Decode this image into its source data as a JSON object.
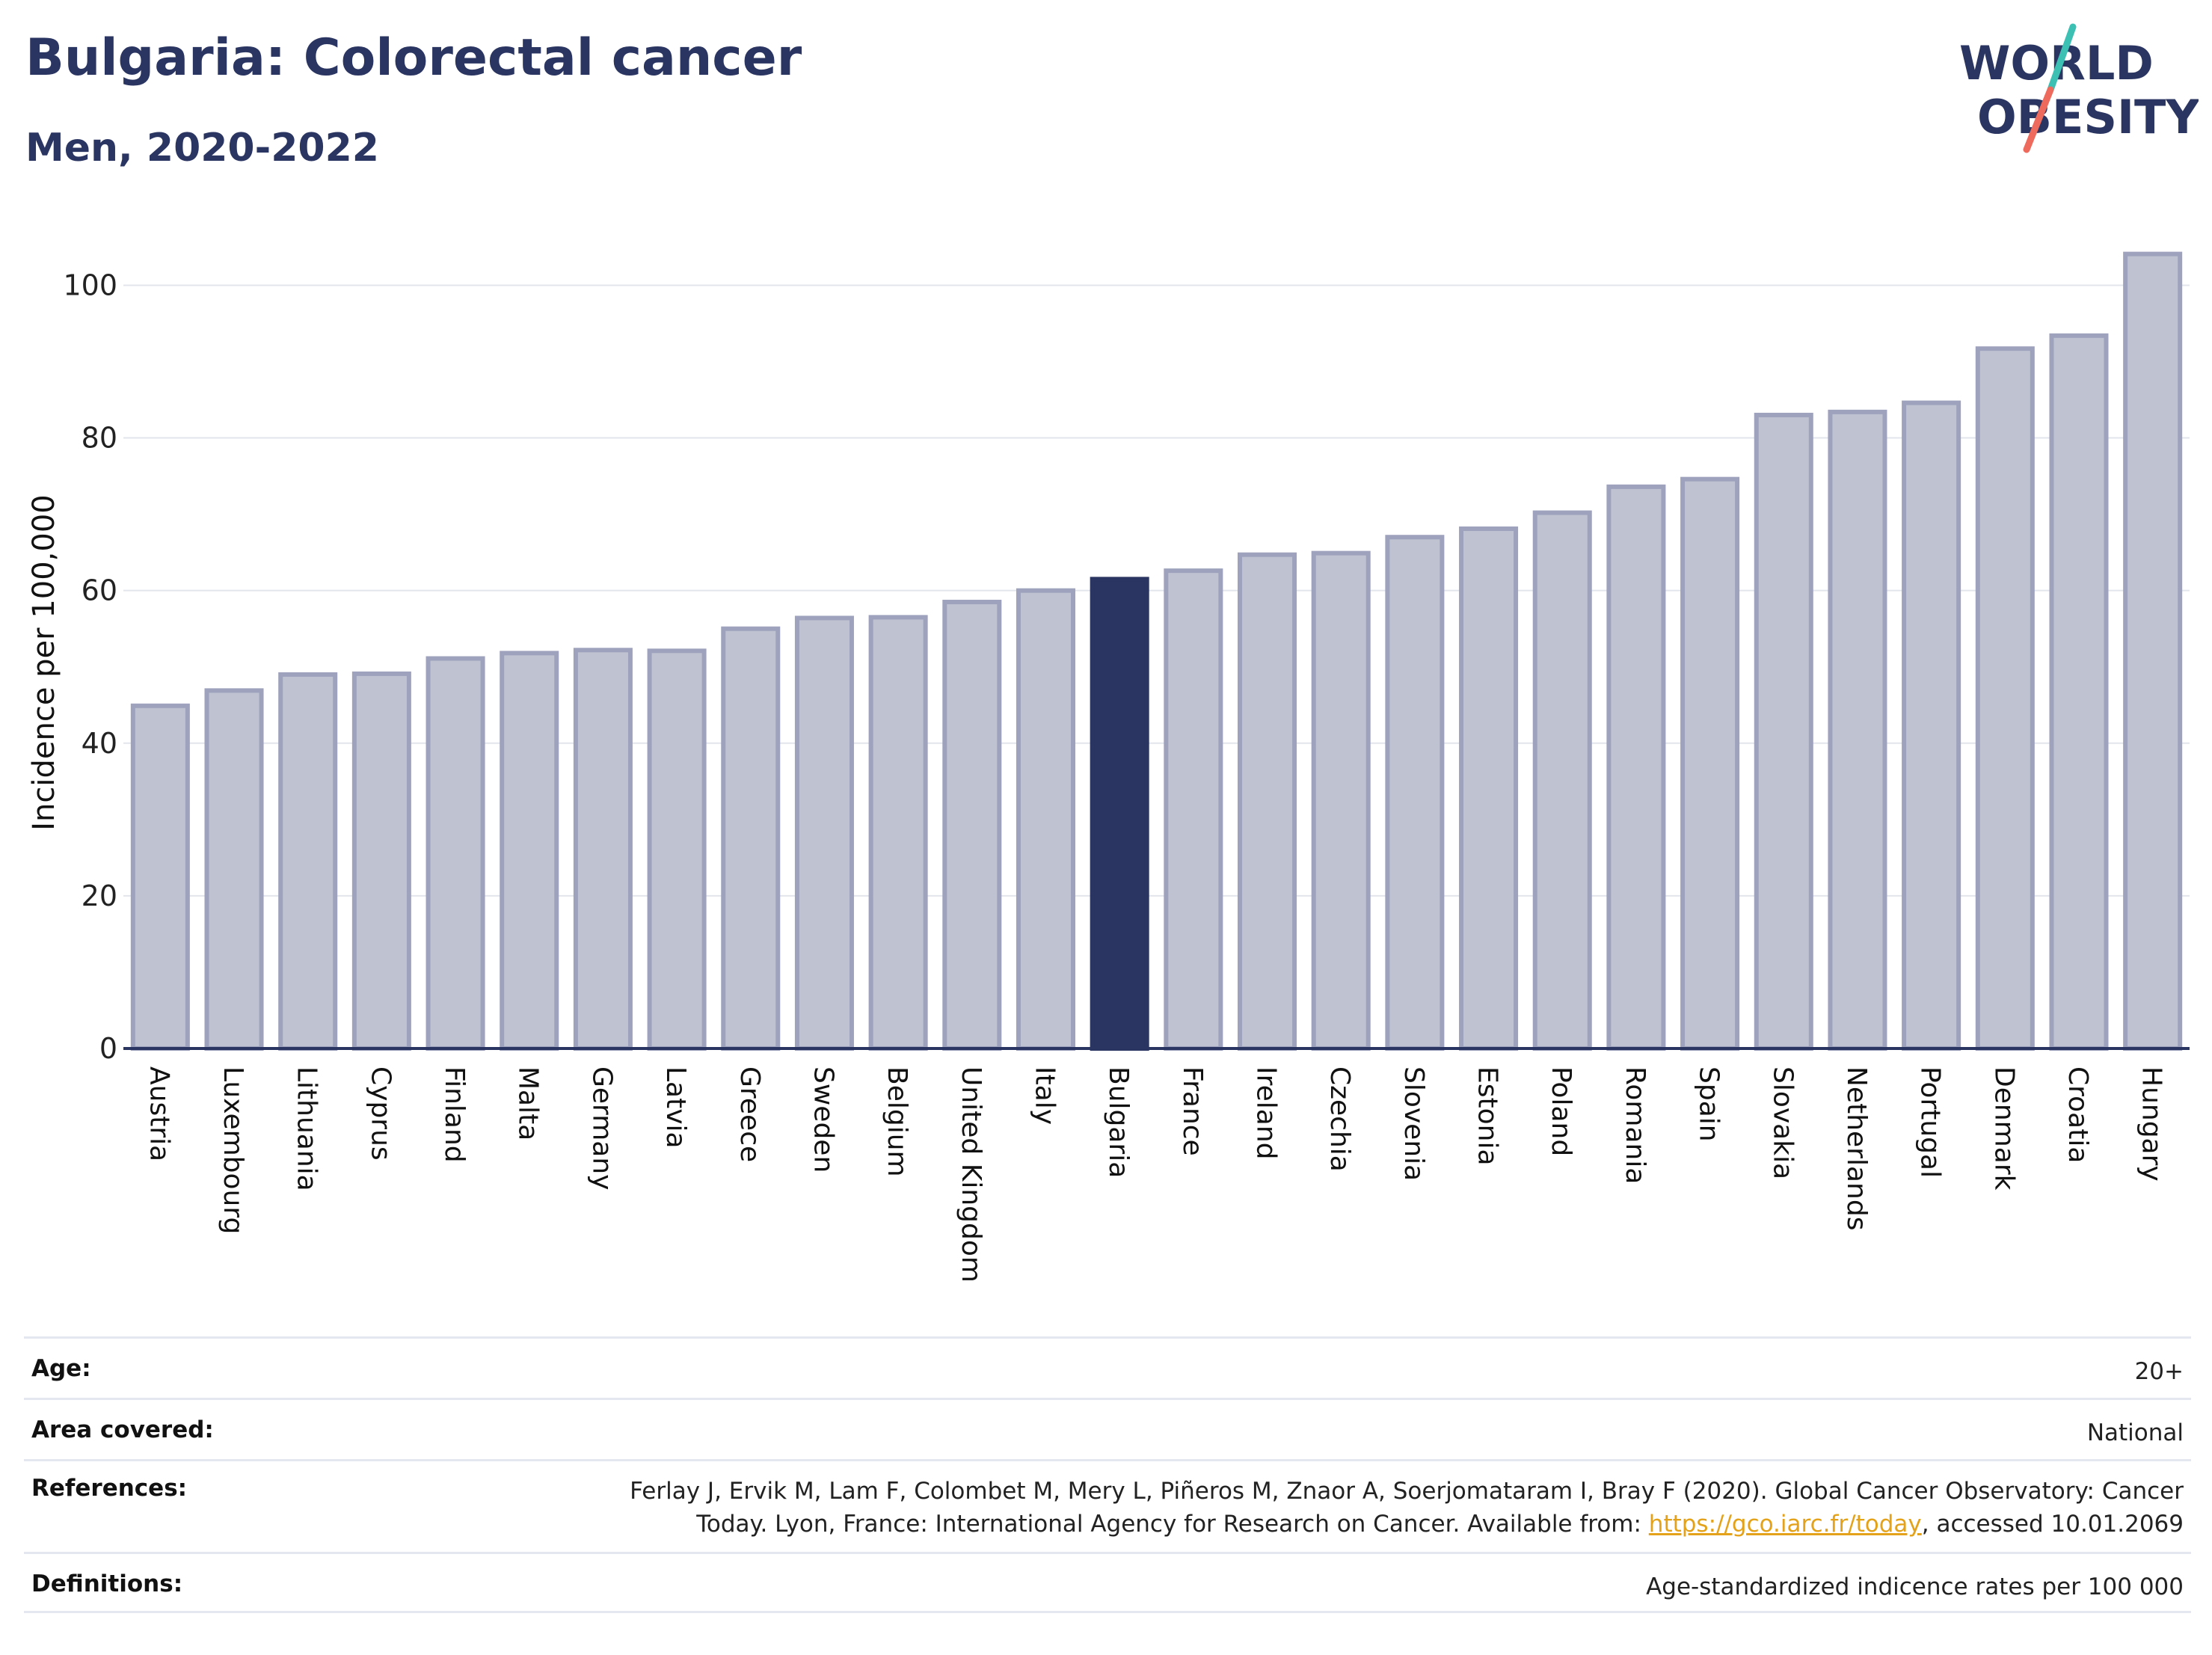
{
  "header": {
    "title": "Bulgaria: Colorectal cancer",
    "subtitle": "Men, 2020-2022"
  },
  "logo": {
    "line1": "WORLD",
    "line2": "OBESITY",
    "colors": {
      "text": "#2b3561",
      "slash_teal": "#3cc0b4",
      "slash_coral": "#ee6a5c"
    }
  },
  "chart_data": {
    "type": "bar",
    "ylabel": "Incidence per 100,000",
    "xlabel": "",
    "ylim": [
      0,
      107
    ],
    "yticks": [
      0,
      20,
      40,
      60,
      80,
      100
    ],
    "grid": true,
    "highlight": "Bulgaria",
    "categories": [
      "Austria",
      "Luxembourg",
      "Lithuania",
      "Cyprus",
      "Finland",
      "Malta",
      "Germany",
      "Latvia",
      "Greece",
      "Sweden",
      "Belgium",
      "United Kingdom",
      "Italy",
      "Bulgaria",
      "France",
      "Ireland",
      "Czechia",
      "Slovenia",
      "Estonia",
      "Poland",
      "Romania",
      "Spain",
      "Slovakia",
      "Netherlands",
      "Portugal",
      "Denmark",
      "Croatia",
      "Hungary"
    ],
    "values": [
      44.9,
      46.9,
      49.0,
      49.1,
      51.1,
      51.8,
      52.2,
      52.1,
      55.0,
      56.4,
      56.5,
      58.5,
      60.0,
      61.5,
      62.6,
      64.7,
      64.9,
      67.0,
      68.1,
      70.2,
      73.6,
      74.6,
      83.0,
      83.4,
      84.6,
      91.7,
      93.4,
      104.1
    ],
    "colors": {
      "bar": "#bfc3d1",
      "bar_edge": "#9ea2bc",
      "highlight": "#2b3561",
      "grid": "#e3e5ec",
      "axis": "#2b3561"
    }
  },
  "meta": {
    "age_label": "Age:",
    "age_value": "20+",
    "area_label": "Area covered:",
    "area_value": "National",
    "references_label": "References:",
    "references_line1": "Ferlay J, Ervik M, Lam F, Colombet M, Mery L, Piñeros M, Znaor A, Soerjomataram I, Bray F (2020). Global Cancer Observatory: Cancer",
    "references_line2_pre": "Today. Lyon, France: International Agency for Research on Cancer. Available from: ",
    "references_link": "https://gco.iarc.fr/today",
    "references_line2_post": ", accessed 10.01.2069",
    "definitions_label": "Definitions:",
    "definitions_value": "Age-standardized indicence rates per 100 000"
  }
}
